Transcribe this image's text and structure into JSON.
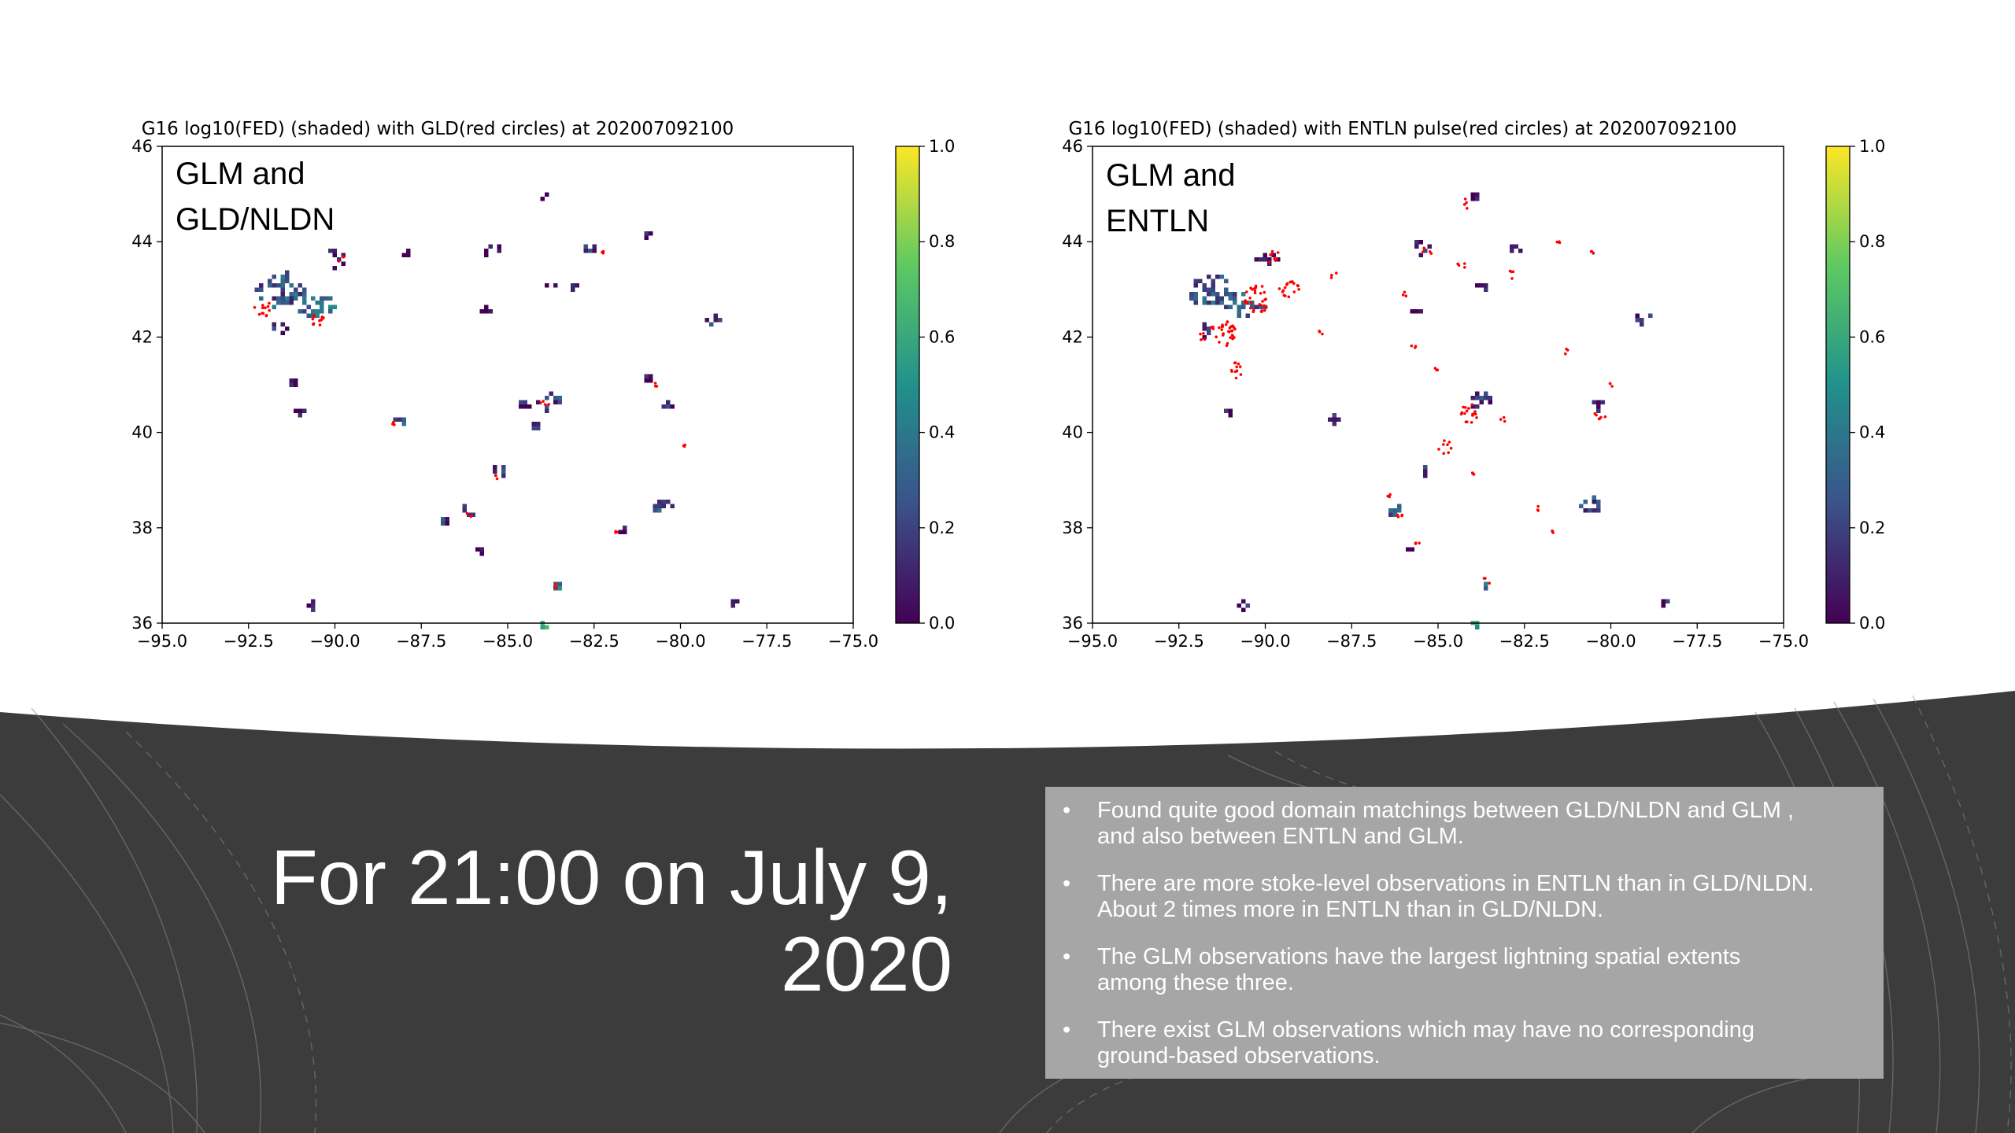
{
  "headline": {
    "line1": "For 21:00 on July 9,",
    "line2": "2020"
  },
  "bullets": [
    {
      "line1": "Found quite good domain matchings between GLD/NLDN and GLM ,",
      "line2": "and also between ENTLN and GLM."
    },
    {
      "line1": "There are more stoke-level observations in ENTLN than in GLD/NLDN.",
      "line2": "About 2 times more in ENTLN than in GLD/NLDN."
    },
    {
      "line1": "The GLM observations have the largest lightning spatial extents",
      "line2": "among these three."
    },
    {
      "line1": "There exist GLM observations which may have no corresponding",
      "line2": "ground-based observations."
    }
  ],
  "bullet_symbol": "•",
  "colors": {
    "dark_band": "#3c3c3c",
    "bullet_box": "#a6a6a6",
    "circle_red": "#ff0000",
    "viridis": [
      "#440154",
      "#3b528b",
      "#21918c",
      "#5ec962",
      "#fde725"
    ]
  },
  "chart_data": [
    {
      "type": "heatmap",
      "title": "G16 log10(FED) (shaded) with GLD(red circles) at 202007092100",
      "annotation": {
        "line1": "GLM and",
        "line2": "GLD/NLDN"
      },
      "xlim": [
        -95.0,
        -75.0
      ],
      "ylim": [
        36,
        46
      ],
      "xticks": [
        -95.0,
        -92.5,
        -90.0,
        -87.5,
        -85.0,
        -82.5,
        -80.0,
        -77.5,
        -75.0
      ],
      "xtick_labels": [
        "−95.0",
        "−92.5",
        "−90.0",
        "−87.5",
        "−85.0",
        "−82.5",
        "−80.0",
        "−77.5",
        "−75.0"
      ],
      "yticks": [
        36,
        38,
        40,
        42,
        44,
        46
      ],
      "ytick_labels": [
        "36",
        "38",
        "40",
        "42",
        "44",
        "46"
      ],
      "colorbar": {
        "range": [
          0.0,
          1.0
        ],
        "ticks": [
          0.0,
          0.2,
          0.4,
          0.6,
          0.8,
          1.0
        ],
        "tick_labels": [
          "0.0",
          "0.2",
          "0.4",
          "0.6",
          "0.8",
          "1.0"
        ]
      },
      "clusters": [
        {
          "lon": -91.6,
          "lat": 43.0,
          "size": 1.1,
          "val": 0.3
        },
        {
          "lon": -90.6,
          "lat": 42.7,
          "size": 0.8,
          "val": 0.35
        },
        {
          "lon": -91.7,
          "lat": 42.2,
          "size": 0.4,
          "val": 0.15
        },
        {
          "lon": -90.0,
          "lat": 43.7,
          "size": 0.5,
          "val": 0.1
        },
        {
          "lon": -91.3,
          "lat": 41.1,
          "size": 0.2,
          "val": 0.05
        },
        {
          "lon": -91.1,
          "lat": 40.5,
          "size": 0.2,
          "val": 0.05
        },
        {
          "lon": -88.0,
          "lat": 43.8,
          "size": 0.15,
          "val": 0.05
        },
        {
          "lon": -88.1,
          "lat": 40.3,
          "size": 0.35,
          "val": 0.25
        },
        {
          "lon": -85.5,
          "lat": 43.9,
          "size": 0.4,
          "val": 0.1
        },
        {
          "lon": -85.7,
          "lat": 42.6,
          "size": 0.2,
          "val": 0.05
        },
        {
          "lon": -84.0,
          "lat": 45.0,
          "size": 0.2,
          "val": 0.05
        },
        {
          "lon": -82.7,
          "lat": 43.9,
          "size": 0.3,
          "val": 0.2
        },
        {
          "lon": -83.8,
          "lat": 43.1,
          "size": 0.15,
          "val": 0.05
        },
        {
          "lon": -83.2,
          "lat": 43.1,
          "size": 0.15,
          "val": 0.05
        },
        {
          "lon": -81.0,
          "lat": 44.2,
          "size": 0.15,
          "val": 0.05
        },
        {
          "lon": -79.1,
          "lat": 42.4,
          "size": 0.35,
          "val": 0.15
        },
        {
          "lon": -83.8,
          "lat": 40.7,
          "size": 0.55,
          "val": 0.2
        },
        {
          "lon": -84.5,
          "lat": 40.6,
          "size": 0.25,
          "val": 0.1
        },
        {
          "lon": -84.3,
          "lat": 40.2,
          "size": 0.2,
          "val": 0.1
        },
        {
          "lon": -85.3,
          "lat": 39.2,
          "size": 0.4,
          "val": 0.2
        },
        {
          "lon": -80.4,
          "lat": 40.6,
          "size": 0.35,
          "val": 0.1
        },
        {
          "lon": -81.0,
          "lat": 41.2,
          "size": 0.15,
          "val": 0.05
        },
        {
          "lon": -80.6,
          "lat": 38.5,
          "size": 0.5,
          "val": 0.25
        },
        {
          "lon": -86.2,
          "lat": 38.4,
          "size": 0.4,
          "val": 0.3
        },
        {
          "lon": -86.9,
          "lat": 38.2,
          "size": 0.3,
          "val": 0.2
        },
        {
          "lon": -85.9,
          "lat": 37.6,
          "size": 0.2,
          "val": 0.05
        },
        {
          "lon": -83.6,
          "lat": 36.8,
          "size": 0.25,
          "val": 0.4
        },
        {
          "lon": -90.7,
          "lat": 36.4,
          "size": 0.3,
          "val": 0.1
        },
        {
          "lon": -78.5,
          "lat": 36.5,
          "size": 0.25,
          "val": 0.1
        },
        {
          "lon": -81.7,
          "lat": 38.0,
          "size": 0.15,
          "val": 0.05
        },
        {
          "lon": -84.0,
          "lat": 36.0,
          "size": 0.15,
          "val": 0.6
        }
      ],
      "circles": [
        {
          "lon": -92.1,
          "lat": 42.6,
          "size": 0.5
        },
        {
          "lon": -90.5,
          "lat": 42.4,
          "size": 0.5
        },
        {
          "lon": -89.8,
          "lat": 43.6,
          "size": 0.3
        },
        {
          "lon": -83.9,
          "lat": 40.6,
          "size": 0.3
        },
        {
          "lon": -85.3,
          "lat": 39.1,
          "size": 0.2
        },
        {
          "lon": -86.1,
          "lat": 38.3,
          "size": 0.2
        },
        {
          "lon": -83.6,
          "lat": 36.8,
          "size": 0.2
        },
        {
          "lon": -81.9,
          "lat": 37.9,
          "size": 0.15
        },
        {
          "lon": -88.3,
          "lat": 40.2,
          "size": 0.2
        },
        {
          "lon": -82.2,
          "lat": 43.8,
          "size": 0.15
        },
        {
          "lon": -80.7,
          "lat": 41.0,
          "size": 0.15
        },
        {
          "lon": -79.9,
          "lat": 39.7,
          "size": 0.1
        }
      ]
    },
    {
      "type": "heatmap",
      "title": "G16 log10(FED) (shaded) with ENTLN pulse(red circles) at 202007092100",
      "annotation": {
        "line1": "GLM and",
        "line2": "ENTLN"
      },
      "xlim": [
        -95.0,
        -75.0
      ],
      "ylim": [
        36,
        46
      ],
      "xticks": [
        -95.0,
        -92.5,
        -90.0,
        -87.5,
        -85.0,
        -82.5,
        -80.0,
        -77.5,
        -75.0
      ],
      "xtick_labels": [
        "−95.0",
        "−92.5",
        "−90.0",
        "−87.5",
        "−85.0",
        "−82.5",
        "−80.0",
        "−77.5",
        "−75.0"
      ],
      "yticks": [
        36,
        38,
        40,
        42,
        44,
        46
      ],
      "ytick_labels": [
        "36",
        "38",
        "40",
        "42",
        "44",
        "46"
      ],
      "colorbar": {
        "range": [
          0.0,
          1.0
        ],
        "ticks": [
          0.0,
          0.2,
          0.4,
          0.6,
          0.8,
          1.0
        ],
        "tick_labels": [
          "0.0",
          "0.2",
          "0.4",
          "0.6",
          "0.8",
          "1.0"
        ]
      },
      "clusters": [
        {
          "lon": -91.6,
          "lat": 43.0,
          "size": 1.1,
          "val": 0.3
        },
        {
          "lon": -90.6,
          "lat": 42.7,
          "size": 0.8,
          "val": 0.35
        },
        {
          "lon": -91.7,
          "lat": 42.2,
          "size": 0.4,
          "val": 0.15
        },
        {
          "lon": -90.0,
          "lat": 43.7,
          "size": 0.5,
          "val": 0.1
        },
        {
          "lon": -91.1,
          "lat": 40.5,
          "size": 0.2,
          "val": 0.05
        },
        {
          "lon": -88.1,
          "lat": 40.3,
          "size": 0.35,
          "val": 0.25
        },
        {
          "lon": -85.5,
          "lat": 43.9,
          "size": 0.4,
          "val": 0.1
        },
        {
          "lon": -85.7,
          "lat": 42.6,
          "size": 0.2,
          "val": 0.05
        },
        {
          "lon": -84.0,
          "lat": 45.0,
          "size": 0.2,
          "val": 0.05
        },
        {
          "lon": -82.7,
          "lat": 43.9,
          "size": 0.3,
          "val": 0.2
        },
        {
          "lon": -83.8,
          "lat": 43.1,
          "size": 0.15,
          "val": 0.05
        },
        {
          "lon": -79.1,
          "lat": 42.4,
          "size": 0.35,
          "val": 0.15
        },
        {
          "lon": -83.8,
          "lat": 40.7,
          "size": 0.55,
          "val": 0.2
        },
        {
          "lon": -85.3,
          "lat": 39.2,
          "size": 0.4,
          "val": 0.2
        },
        {
          "lon": -80.4,
          "lat": 40.6,
          "size": 0.35,
          "val": 0.1
        },
        {
          "lon": -80.6,
          "lat": 38.5,
          "size": 0.5,
          "val": 0.25
        },
        {
          "lon": -86.2,
          "lat": 38.4,
          "size": 0.4,
          "val": 0.3
        },
        {
          "lon": -85.9,
          "lat": 37.6,
          "size": 0.2,
          "val": 0.05
        },
        {
          "lon": -83.6,
          "lat": 36.8,
          "size": 0.25,
          "val": 0.4
        },
        {
          "lon": -90.7,
          "lat": 36.4,
          "size": 0.3,
          "val": 0.1
        },
        {
          "lon": -78.5,
          "lat": 36.5,
          "size": 0.25,
          "val": 0.1
        },
        {
          "lon": -84.0,
          "lat": 36.0,
          "size": 0.15,
          "val": 0.6
        }
      ],
      "circles": [
        {
          "lon": -91.2,
          "lat": 42.1,
          "size": 0.8
        },
        {
          "lon": -90.2,
          "lat": 42.8,
          "size": 0.8
        },
        {
          "lon": -89.3,
          "lat": 43.0,
          "size": 0.6
        },
        {
          "lon": -89.8,
          "lat": 43.7,
          "size": 0.4
        },
        {
          "lon": -90.9,
          "lat": 41.3,
          "size": 0.5
        },
        {
          "lon": -91.8,
          "lat": 42.0,
          "size": 0.3
        },
        {
          "lon": -88.0,
          "lat": 43.3,
          "size": 0.25
        },
        {
          "lon": -88.4,
          "lat": 42.1,
          "size": 0.15
        },
        {
          "lon": -84.2,
          "lat": 44.8,
          "size": 0.3
        },
        {
          "lon": -85.3,
          "lat": 43.8,
          "size": 0.3
        },
        {
          "lon": -85.9,
          "lat": 42.9,
          "size": 0.25
        },
        {
          "lon": -84.3,
          "lat": 43.5,
          "size": 0.3
        },
        {
          "lon": -82.9,
          "lat": 43.3,
          "size": 0.3
        },
        {
          "lon": -81.5,
          "lat": 44.0,
          "size": 0.15
        },
        {
          "lon": -80.5,
          "lat": 43.8,
          "size": 0.15
        },
        {
          "lon": -84.1,
          "lat": 40.4,
          "size": 0.6
        },
        {
          "lon": -84.8,
          "lat": 39.7,
          "size": 0.4
        },
        {
          "lon": -85.1,
          "lat": 41.3,
          "size": 0.2
        },
        {
          "lon": -83.1,
          "lat": 40.3,
          "size": 0.2
        },
        {
          "lon": -80.3,
          "lat": 40.4,
          "size": 0.35
        },
        {
          "lon": -80.0,
          "lat": 41.0,
          "size": 0.2
        },
        {
          "lon": -81.3,
          "lat": 41.7,
          "size": 0.15
        },
        {
          "lon": -86.1,
          "lat": 38.3,
          "size": 0.3
        },
        {
          "lon": -86.4,
          "lat": 38.7,
          "size": 0.15
        },
        {
          "lon": -83.6,
          "lat": 36.9,
          "size": 0.25
        },
        {
          "lon": -81.7,
          "lat": 37.9,
          "size": 0.2
        },
        {
          "lon": -85.6,
          "lat": 37.7,
          "size": 0.15
        },
        {
          "lon": -82.1,
          "lat": 38.4,
          "size": 0.12
        },
        {
          "lon": -85.7,
          "lat": 41.8,
          "size": 0.15
        },
        {
          "lon": -84.0,
          "lat": 39.1,
          "size": 0.15
        }
      ]
    }
  ]
}
